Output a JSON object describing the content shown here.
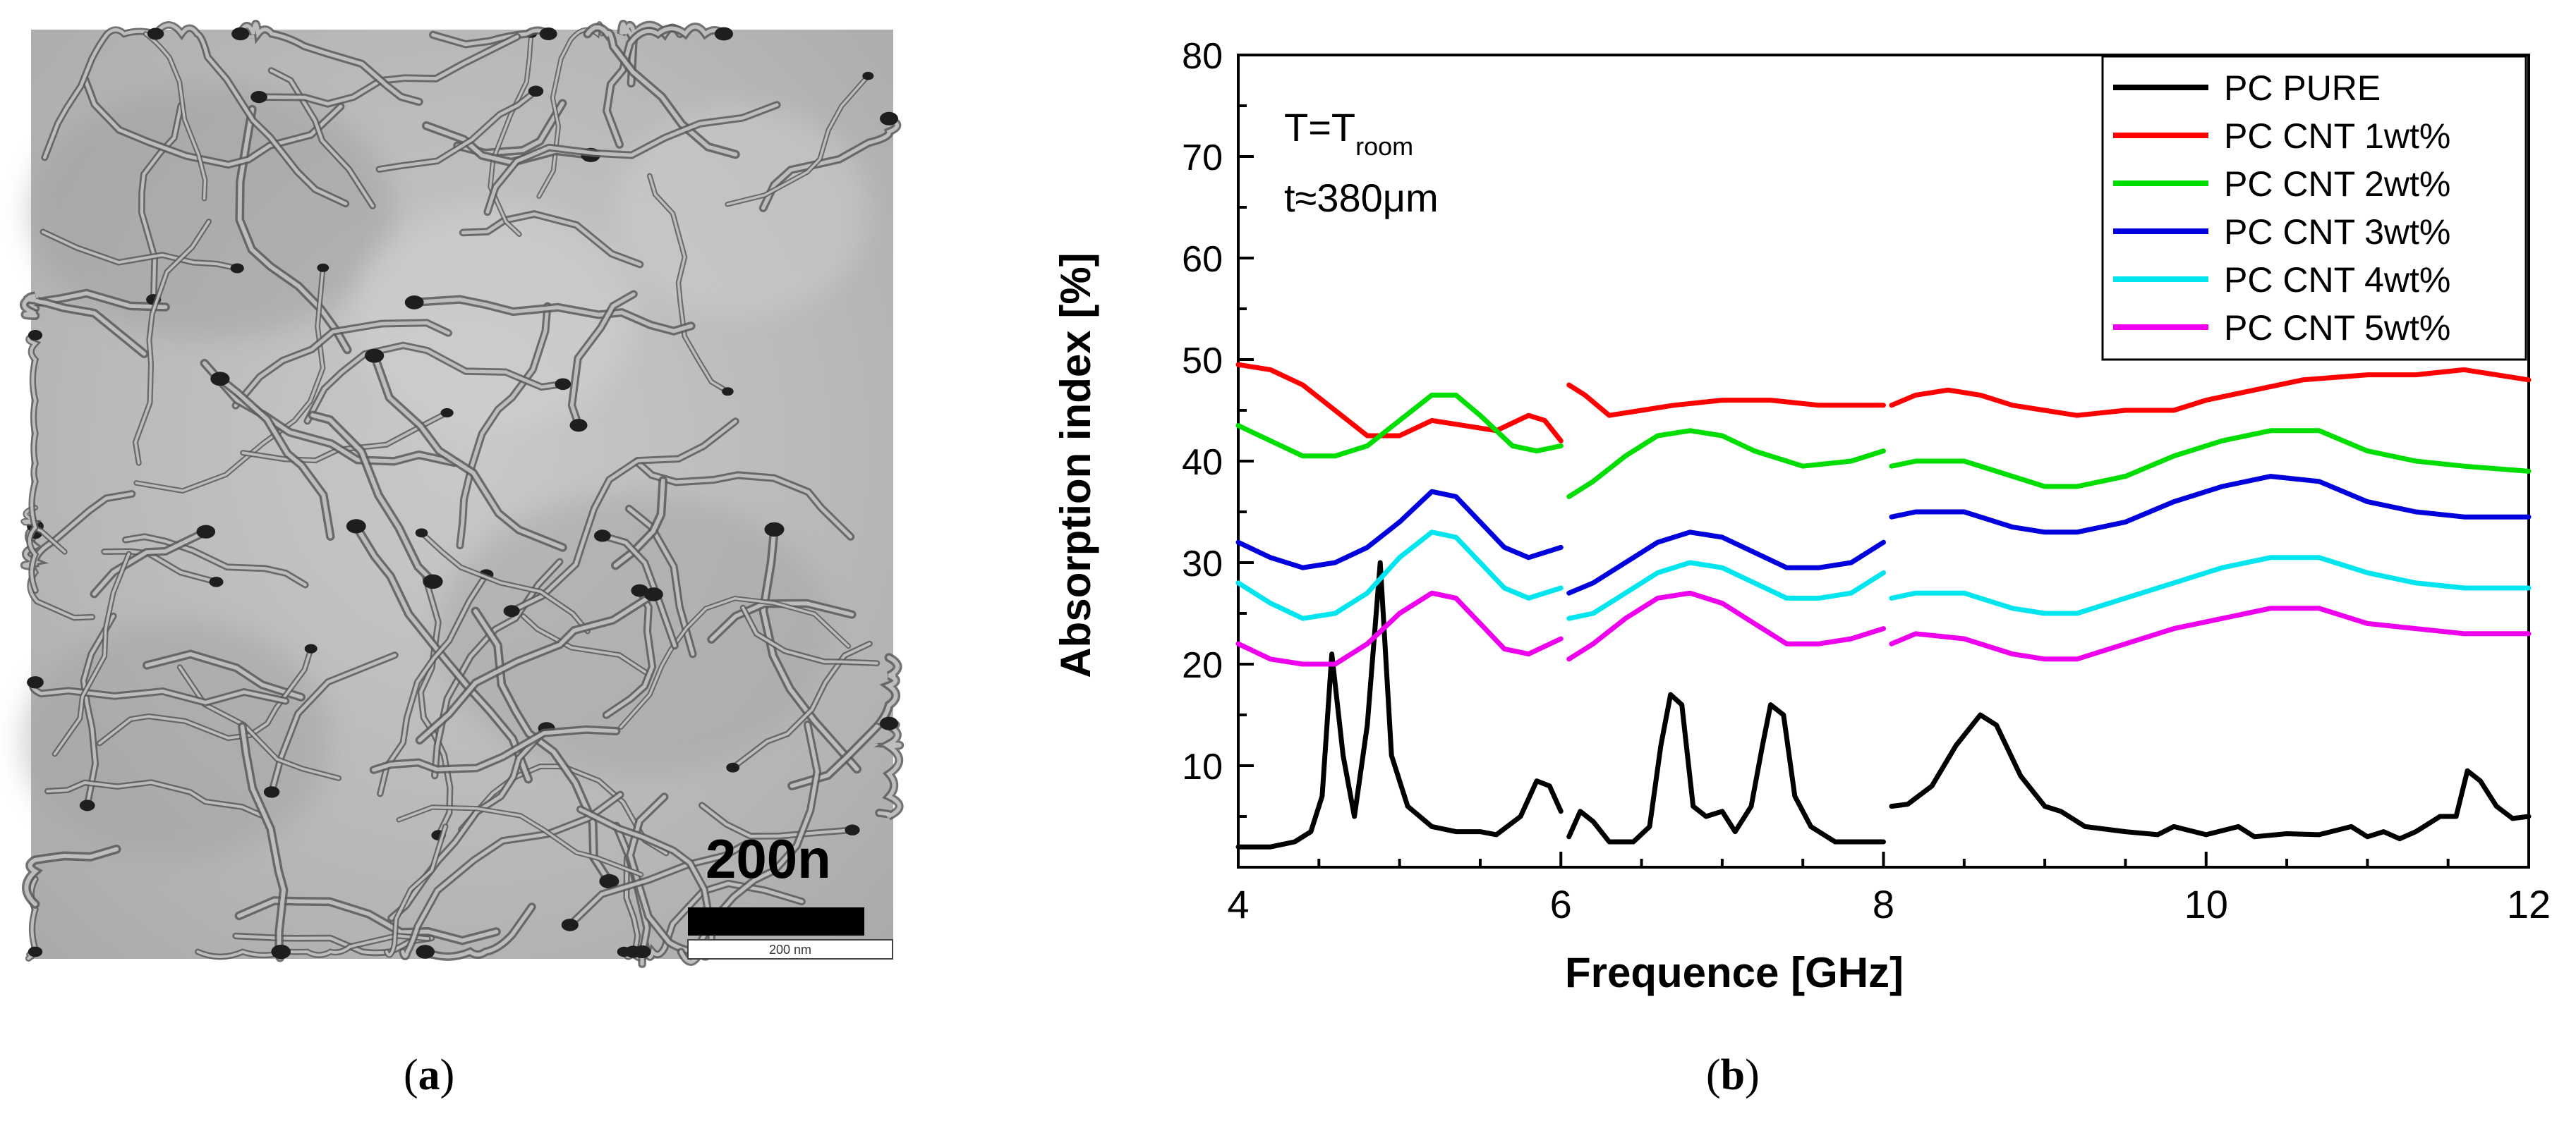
{
  "panel_a": {
    "label": "a",
    "scale_bar_text": "200n",
    "scale_bar_small_text": "200 nm"
  },
  "panel_b": {
    "label": "b"
  },
  "colors": {
    "pure": "#000000",
    "cnt1": "#ff0000",
    "cnt2": "#00dd00",
    "cnt3": "#0000dd",
    "cnt4": "#00e5ee",
    "cnt5": "#ee00ee"
  },
  "chart_data": {
    "type": "line",
    "title": "",
    "xlabel": "Frequence [GHz]",
    "ylabel": "Absorption index [%]",
    "xlim": [
      4,
      12
    ],
    "ylim": [
      0,
      80
    ],
    "xticks": [
      4,
      6,
      8,
      10,
      12
    ],
    "yticks": [
      10,
      20,
      30,
      40,
      50,
      60,
      70,
      80
    ],
    "annotation": {
      "line1_main": "T=T",
      "line1_sub": "room",
      "line2": "t≈380μm"
    },
    "legend_position": "top-right",
    "series": [
      {
        "name": "PC PURE",
        "color_key": "pure",
        "segments": [
          [
            [
              4.0,
              2.0
            ],
            [
              4.2,
              2.0
            ],
            [
              4.35,
              2.5
            ],
            [
              4.45,
              3.5
            ],
            [
              4.52,
              7
            ],
            [
              4.58,
              21
            ],
            [
              4.65,
              11
            ],
            [
              4.72,
              5
            ],
            [
              4.8,
              14
            ],
            [
              4.88,
              30
            ],
            [
              4.95,
              11
            ],
            [
              5.05,
              6
            ],
            [
              5.2,
              4
            ],
            [
              5.35,
              3.5
            ],
            [
              5.5,
              3.5
            ],
            [
              5.6,
              3.2
            ],
            [
              5.75,
              5
            ],
            [
              5.85,
              8.5
            ],
            [
              5.93,
              8
            ],
            [
              6.0,
              5.5
            ]
          ],
          [
            [
              6.05,
              3
            ],
            [
              6.12,
              5.5
            ],
            [
              6.2,
              4.5
            ],
            [
              6.3,
              2.5
            ],
            [
              6.45,
              2.5
            ],
            [
              6.55,
              4
            ],
            [
              6.62,
              12
            ],
            [
              6.68,
              17
            ],
            [
              6.75,
              16
            ],
            [
              6.82,
              6
            ],
            [
              6.9,
              5
            ],
            [
              7.0,
              5.5
            ],
            [
              7.08,
              3.5
            ],
            [
              7.18,
              6
            ],
            [
              7.25,
              12
            ],
            [
              7.3,
              16
            ],
            [
              7.38,
              15
            ],
            [
              7.45,
              7
            ],
            [
              7.55,
              4
            ],
            [
              7.7,
              2.5
            ],
            [
              8.0,
              2.5
            ]
          ],
          [
            [
              8.05,
              6
            ],
            [
              8.15,
              6.2
            ],
            [
              8.3,
              8
            ],
            [
              8.45,
              12
            ],
            [
              8.6,
              15
            ],
            [
              8.7,
              14
            ],
            [
              8.85,
              9
            ],
            [
              9.0,
              6
            ],
            [
              9.1,
              5.5
            ],
            [
              9.25,
              4
            ],
            [
              9.5,
              3.5
            ],
            [
              9.7,
              3.2
            ],
            [
              9.8,
              4
            ],
            [
              10.0,
              3.2
            ],
            [
              10.2,
              4
            ],
            [
              10.3,
              3
            ],
            [
              10.5,
              3.3
            ],
            [
              10.7,
              3.2
            ],
            [
              10.9,
              4
            ],
            [
              11.0,
              3
            ],
            [
              11.1,
              3.5
            ],
            [
              11.2,
              2.8
            ],
            [
              11.3,
              3.5
            ],
            [
              11.45,
              5
            ],
            [
              11.55,
              5
            ],
            [
              11.62,
              9.5
            ],
            [
              11.7,
              8.5
            ],
            [
              11.8,
              6
            ],
            [
              11.9,
              4.8
            ],
            [
              12.0,
              5
            ]
          ]
        ]
      },
      {
        "name": "PC CNT 1wt%",
        "color_key": "cnt1",
        "segments": [
          [
            [
              4.0,
              49.5
            ],
            [
              4.2,
              49
            ],
            [
              4.4,
              47.5
            ],
            [
              4.6,
              45
            ],
            [
              4.8,
              42.5
            ],
            [
              5.0,
              42.5
            ],
            [
              5.2,
              44
            ],
            [
              5.4,
              43.5
            ],
            [
              5.6,
              43
            ],
            [
              5.8,
              44.5
            ],
            [
              5.9,
              44
            ],
            [
              6.0,
              42
            ]
          ],
          [
            [
              6.05,
              47.5
            ],
            [
              6.15,
              46.5
            ],
            [
              6.3,
              44.5
            ],
            [
              6.5,
              45
            ],
            [
              6.7,
              45.5
            ],
            [
              7.0,
              46
            ],
            [
              7.3,
              46
            ],
            [
              7.6,
              45.5
            ],
            [
              8.0,
              45.5
            ]
          ],
          [
            [
              8.05,
              45.5
            ],
            [
              8.2,
              46.5
            ],
            [
              8.4,
              47
            ],
            [
              8.6,
              46.5
            ],
            [
              8.8,
              45.5
            ],
            [
              9.0,
              45
            ],
            [
              9.2,
              44.5
            ],
            [
              9.5,
              45
            ],
            [
              9.8,
              45
            ],
            [
              10.0,
              46
            ],
            [
              10.3,
              47
            ],
            [
              10.6,
              48
            ],
            [
              11.0,
              48.5
            ],
            [
              11.3,
              48.5
            ],
            [
              11.6,
              49
            ],
            [
              12.0,
              48
            ]
          ]
        ]
      },
      {
        "name": "PC CNT 2wt%",
        "color_key": "cnt2",
        "segments": [
          [
            [
              4.0,
              43.5
            ],
            [
              4.2,
              42
            ],
            [
              4.4,
              40.5
            ],
            [
              4.6,
              40.5
            ],
            [
              4.8,
              41.5
            ],
            [
              5.0,
              44
            ],
            [
              5.2,
              46.5
            ],
            [
              5.35,
              46.5
            ],
            [
              5.5,
              44.5
            ],
            [
              5.7,
              41.5
            ],
            [
              5.85,
              41
            ],
            [
              6.0,
              41.5
            ]
          ],
          [
            [
              6.05,
              36.5
            ],
            [
              6.2,
              38
            ],
            [
              6.4,
              40.5
            ],
            [
              6.6,
              42.5
            ],
            [
              6.8,
              43
            ],
            [
              7.0,
              42.5
            ],
            [
              7.2,
              41
            ],
            [
              7.5,
              39.5
            ],
            [
              7.8,
              40
            ],
            [
              8.0,
              41
            ]
          ],
          [
            [
              8.05,
              39.5
            ],
            [
              8.2,
              40
            ],
            [
              8.5,
              40
            ],
            [
              8.8,
              38.5
            ],
            [
              9.0,
              37.5
            ],
            [
              9.2,
              37.5
            ],
            [
              9.5,
              38.5
            ],
            [
              9.8,
              40.5
            ],
            [
              10.1,
              42
            ],
            [
              10.4,
              43
            ],
            [
              10.7,
              43
            ],
            [
              11.0,
              41
            ],
            [
              11.3,
              40
            ],
            [
              11.6,
              39.5
            ],
            [
              12.0,
              39
            ]
          ]
        ]
      },
      {
        "name": "PC CNT 3wt%",
        "color_key": "cnt3",
        "segments": [
          [
            [
              4.0,
              32
            ],
            [
              4.2,
              30.5
            ],
            [
              4.4,
              29.5
            ],
            [
              4.6,
              30
            ],
            [
              4.8,
              31.5
            ],
            [
              5.0,
              34
            ],
            [
              5.2,
              37
            ],
            [
              5.35,
              36.5
            ],
            [
              5.5,
              34
            ],
            [
              5.65,
              31.5
            ],
            [
              5.8,
              30.5
            ],
            [
              6.0,
              31.5
            ]
          ],
          [
            [
              6.05,
              27
            ],
            [
              6.2,
              28
            ],
            [
              6.4,
              30
            ],
            [
              6.6,
              32
            ],
            [
              6.8,
              33
            ],
            [
              7.0,
              32.5
            ],
            [
              7.2,
              31
            ],
            [
              7.4,
              29.5
            ],
            [
              7.6,
              29.5
            ],
            [
              7.8,
              30
            ],
            [
              8.0,
              32
            ]
          ],
          [
            [
              8.05,
              34.5
            ],
            [
              8.2,
              35
            ],
            [
              8.5,
              35
            ],
            [
              8.8,
              33.5
            ],
            [
              9.0,
              33
            ],
            [
              9.2,
              33
            ],
            [
              9.5,
              34
            ],
            [
              9.8,
              36
            ],
            [
              10.1,
              37.5
            ],
            [
              10.4,
              38.5
            ],
            [
              10.7,
              38
            ],
            [
              11.0,
              36
            ],
            [
              11.3,
              35
            ],
            [
              11.6,
              34.5
            ],
            [
              12.0,
              34.5
            ]
          ]
        ]
      },
      {
        "name": "PC CNT 4wt%",
        "color_key": "cnt4",
        "segments": [
          [
            [
              4.0,
              28
            ],
            [
              4.2,
              26
            ],
            [
              4.4,
              24.5
            ],
            [
              4.6,
              25
            ],
            [
              4.8,
              27
            ],
            [
              5.0,
              30.5
            ],
            [
              5.2,
              33
            ],
            [
              5.35,
              32.5
            ],
            [
              5.5,
              30
            ],
            [
              5.65,
              27.5
            ],
            [
              5.8,
              26.5
            ],
            [
              6.0,
              27.5
            ]
          ],
          [
            [
              6.05,
              24.5
            ],
            [
              6.2,
              25
            ],
            [
              6.4,
              27
            ],
            [
              6.6,
              29
            ],
            [
              6.8,
              30
            ],
            [
              7.0,
              29.5
            ],
            [
              7.2,
              28
            ],
            [
              7.4,
              26.5
            ],
            [
              7.6,
              26.5
            ],
            [
              7.8,
              27
            ],
            [
              8.0,
              29
            ]
          ],
          [
            [
              8.05,
              26.5
            ],
            [
              8.2,
              27
            ],
            [
              8.5,
              27
            ],
            [
              8.8,
              25.5
            ],
            [
              9.0,
              25
            ],
            [
              9.2,
              25
            ],
            [
              9.5,
              26.5
            ],
            [
              9.8,
              28
            ],
            [
              10.1,
              29.5
            ],
            [
              10.4,
              30.5
            ],
            [
              10.7,
              30.5
            ],
            [
              11.0,
              29
            ],
            [
              11.3,
              28
            ],
            [
              11.6,
              27.5
            ],
            [
              12.0,
              27.5
            ]
          ]
        ]
      },
      {
        "name": "PC CNT 5wt%",
        "color_key": "cnt5",
        "segments": [
          [
            [
              4.0,
              22
            ],
            [
              4.2,
              20.5
            ],
            [
              4.4,
              20
            ],
            [
              4.6,
              20
            ],
            [
              4.8,
              22
            ],
            [
              5.0,
              25
            ],
            [
              5.2,
              27
            ],
            [
              5.35,
              26.5
            ],
            [
              5.5,
              24
            ],
            [
              5.65,
              21.5
            ],
            [
              5.8,
              21
            ],
            [
              6.0,
              22.5
            ]
          ],
          [
            [
              6.05,
              20.5
            ],
            [
              6.2,
              22
            ],
            [
              6.4,
              24.5
            ],
            [
              6.6,
              26.5
            ],
            [
              6.8,
              27
            ],
            [
              7.0,
              26
            ],
            [
              7.2,
              24
            ],
            [
              7.4,
              22
            ],
            [
              7.6,
              22
            ],
            [
              7.8,
              22.5
            ],
            [
              8.0,
              23.5
            ]
          ],
          [
            [
              8.05,
              22
            ],
            [
              8.2,
              23
            ],
            [
              8.5,
              22.5
            ],
            [
              8.8,
              21
            ],
            [
              9.0,
              20.5
            ],
            [
              9.2,
              20.5
            ],
            [
              9.5,
              22
            ],
            [
              9.8,
              23.5
            ],
            [
              10.1,
              24.5
            ],
            [
              10.4,
              25.5
            ],
            [
              10.7,
              25.5
            ],
            [
              11.0,
              24
            ],
            [
              11.3,
              23.5
            ],
            [
              11.6,
              23
            ],
            [
              12.0,
              23
            ]
          ]
        ]
      }
    ]
  }
}
